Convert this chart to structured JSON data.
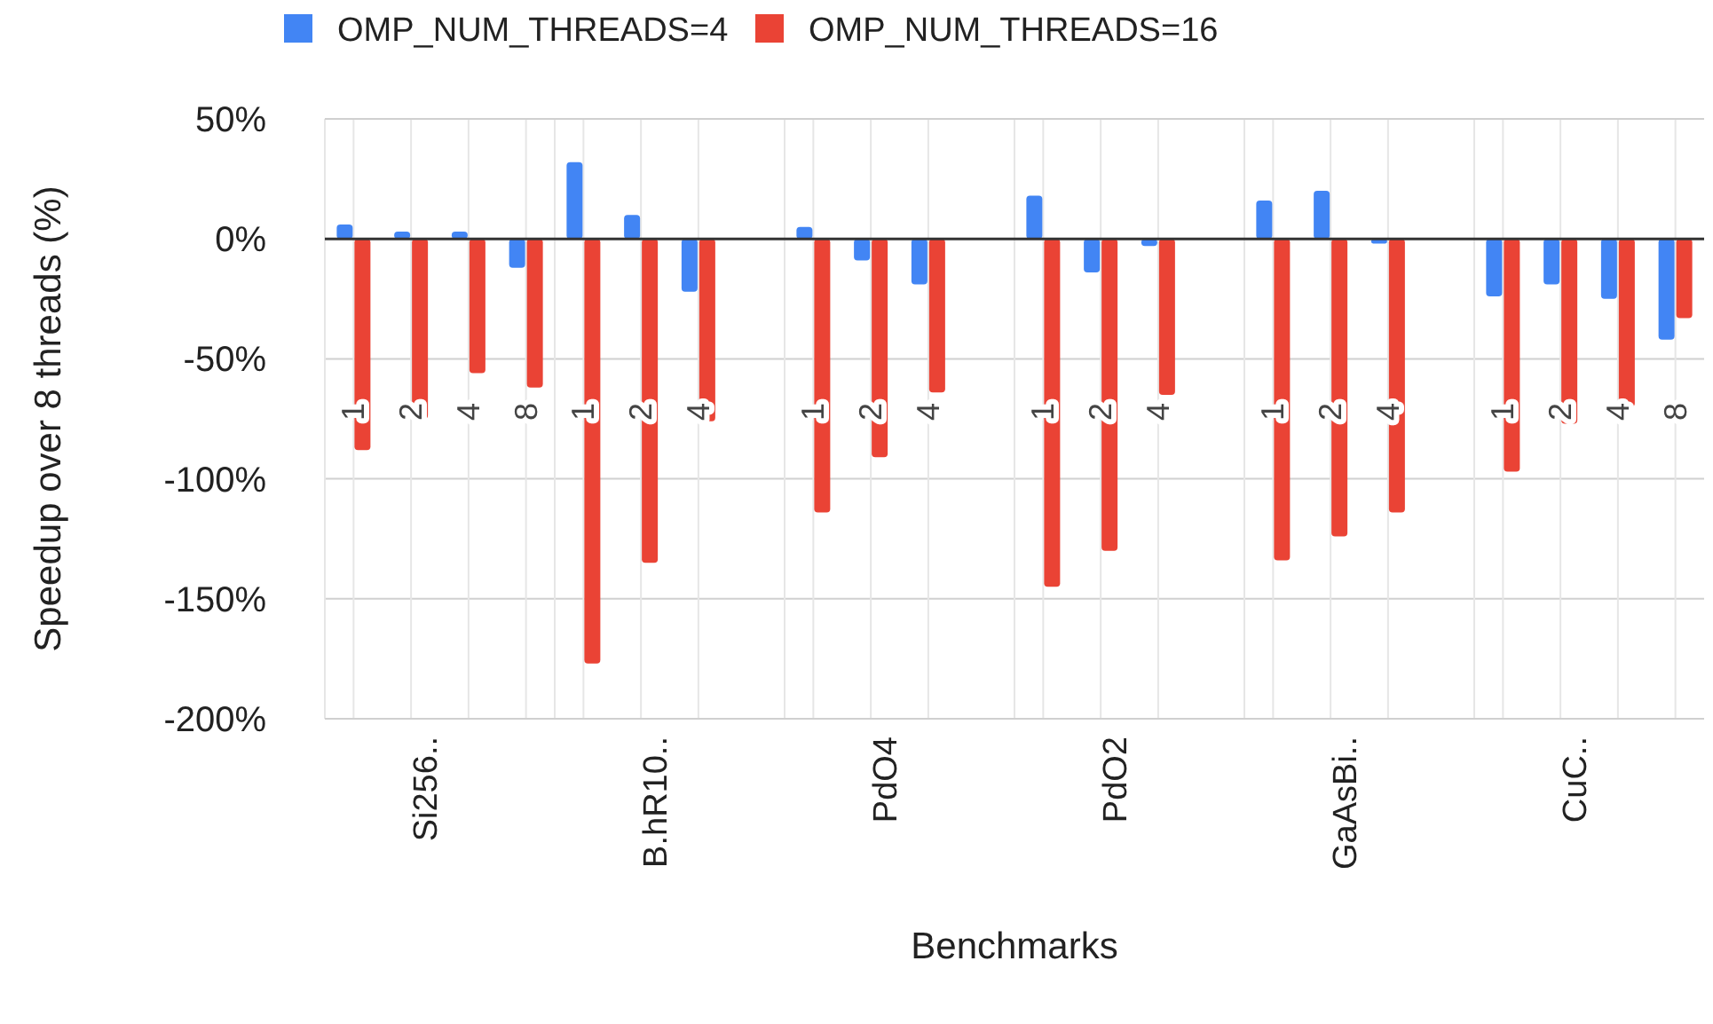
{
  "chart_data": {
    "type": "bar",
    "xlabel": "Benchmarks",
    "ylabel": "Speedup over 8 threads (%)",
    "categories": [
      "1",
      "2",
      "4",
      "8",
      "1",
      "2",
      "4",
      null,
      "1",
      "2",
      "4",
      null,
      "1",
      "2",
      "4",
      null,
      "1",
      "2",
      "4",
      null,
      "1",
      "2",
      "4",
      "8"
    ],
    "annotations": [
      "Si256..",
      "B.hR10..",
      "PdO4",
      "PdO2",
      "GaAsBi..",
      "CuC.."
    ],
    "series": [
      {
        "name": "OMP_NUM_THREADS=4",
        "color": "#4285f4",
        "values": [
          6,
          3,
          3,
          -12,
          32,
          10,
          -22,
          null,
          5,
          -9,
          -19,
          null,
          18,
          -14,
          -3,
          null,
          16,
          20,
          -2,
          null,
          -24,
          -19,
          -25,
          -42
        ]
      },
      {
        "name": "OMP_NUM_THREADS=16",
        "color": "#ea4335",
        "values": [
          -88,
          -75,
          -56,
          -62,
          -177,
          -135,
          -76,
          null,
          -114,
          -91,
          -64,
          null,
          -145,
          -130,
          -65,
          null,
          -134,
          -124,
          -114,
          null,
          -97,
          -77,
          -70,
          -33
        ]
      }
    ],
    "ylim": [
      -200,
      50
    ],
    "yticks": [
      {
        "value": 50,
        "label": "50%"
      },
      {
        "value": 0,
        "label": "0%"
      },
      {
        "value": -50,
        "label": "-50%"
      },
      {
        "value": -100,
        "label": "-100%"
      },
      {
        "value": -150,
        "label": "-150%"
      },
      {
        "value": -200,
        "label": "-200%"
      }
    ],
    "grid": true,
    "legend": "top"
  }
}
